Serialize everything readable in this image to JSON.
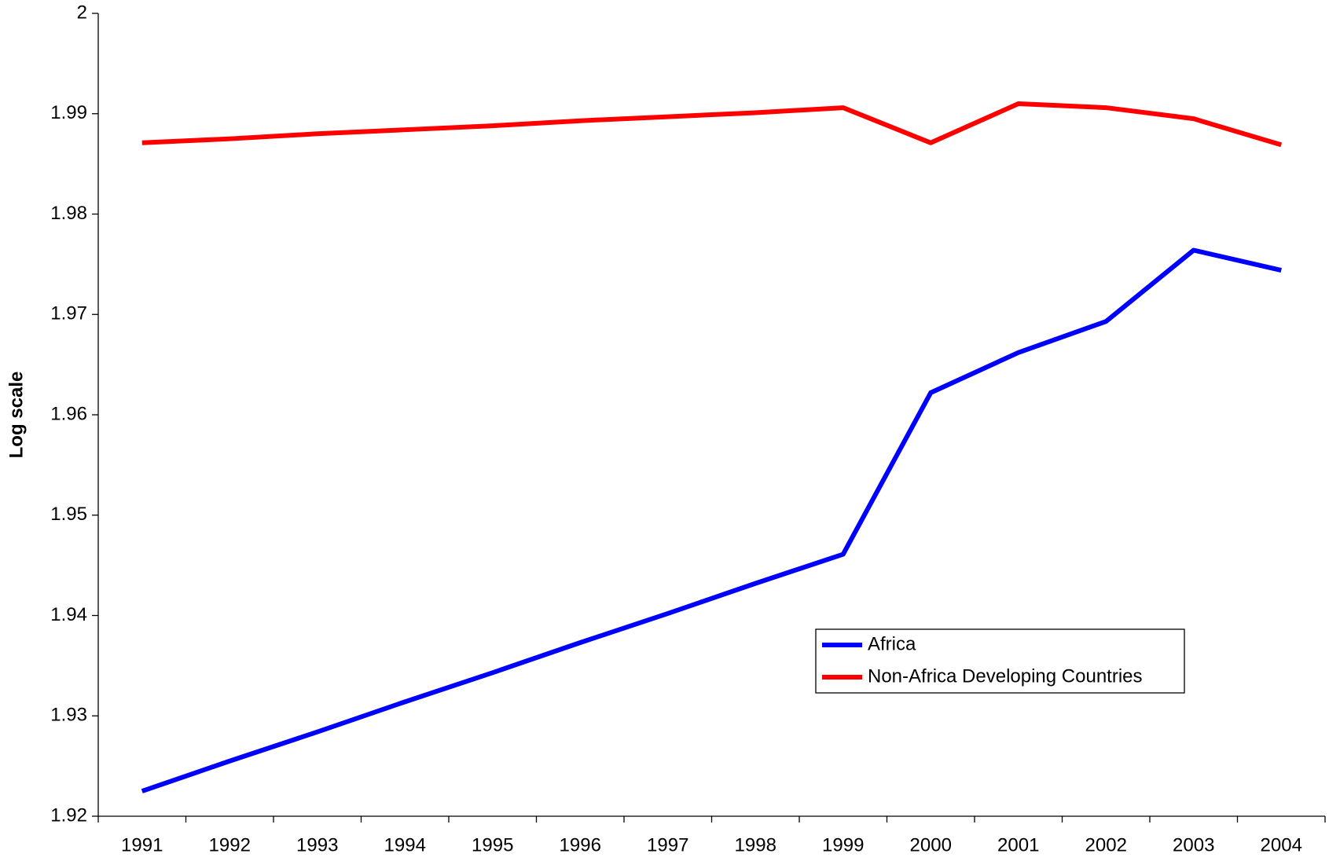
{
  "chart_data": {
    "type": "line",
    "y_label": "Log scale",
    "categories": [
      "1991",
      "1992",
      "1993",
      "1994",
      "1995",
      "1996",
      "1997",
      "1998",
      "1999",
      "2000",
      "2001",
      "2002",
      "2003",
      "2004"
    ],
    "series": [
      {
        "name": "Africa",
        "color": "#0000ff",
        "values": [
          1.9225,
          1.9255,
          1.9284,
          1.9314,
          1.9343,
          1.9373,
          1.9402,
          1.9432,
          1.9461,
          1.9622,
          1.9662,
          1.9693,
          1.9764,
          1.9744
        ]
      },
      {
        "name": "Non-Africa Developing Countries",
        "color": "#ff0000",
        "values": [
          1.9871,
          1.9875,
          1.988,
          1.9884,
          1.9888,
          1.9893,
          1.9897,
          1.9901,
          1.9906,
          1.9871,
          1.991,
          1.9906,
          1.9895,
          1.9869
        ]
      }
    ],
    "ylim": [
      1.92,
      2
    ],
    "yticks": [
      1.92,
      1.93,
      1.94,
      1.95,
      1.96,
      1.97,
      1.98,
      1.99,
      2
    ],
    "grid": false
  }
}
